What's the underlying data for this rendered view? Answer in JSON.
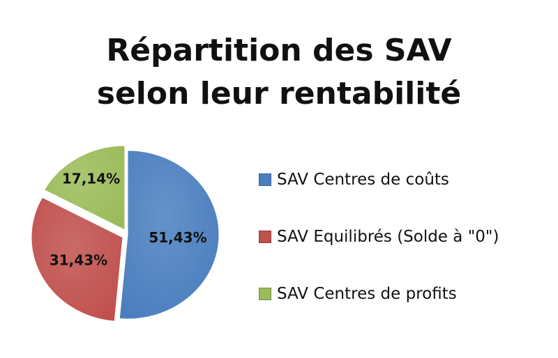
{
  "chart_data": {
    "type": "pie",
    "title_lines": [
      "Répartition des SAV",
      "selon leur rentabilité"
    ],
    "slices": [
      {
        "name": "SAV Centres de coûts",
        "value": 51.43,
        "label": "51,43%",
        "color": "#4a7ebf",
        "exploded": false
      },
      {
        "name": "SAV Equilibrés (Solde à \"0\")",
        "value": 31.43,
        "label": "31,43%",
        "color": "#c0504d",
        "exploded": true
      },
      {
        "name": "SAV Centres de profits",
        "value": 17.14,
        "label": "17,14%",
        "color": "#9bbb59",
        "exploded": true
      }
    ],
    "legend_position": "right",
    "start_angle": "top, clockwise"
  }
}
